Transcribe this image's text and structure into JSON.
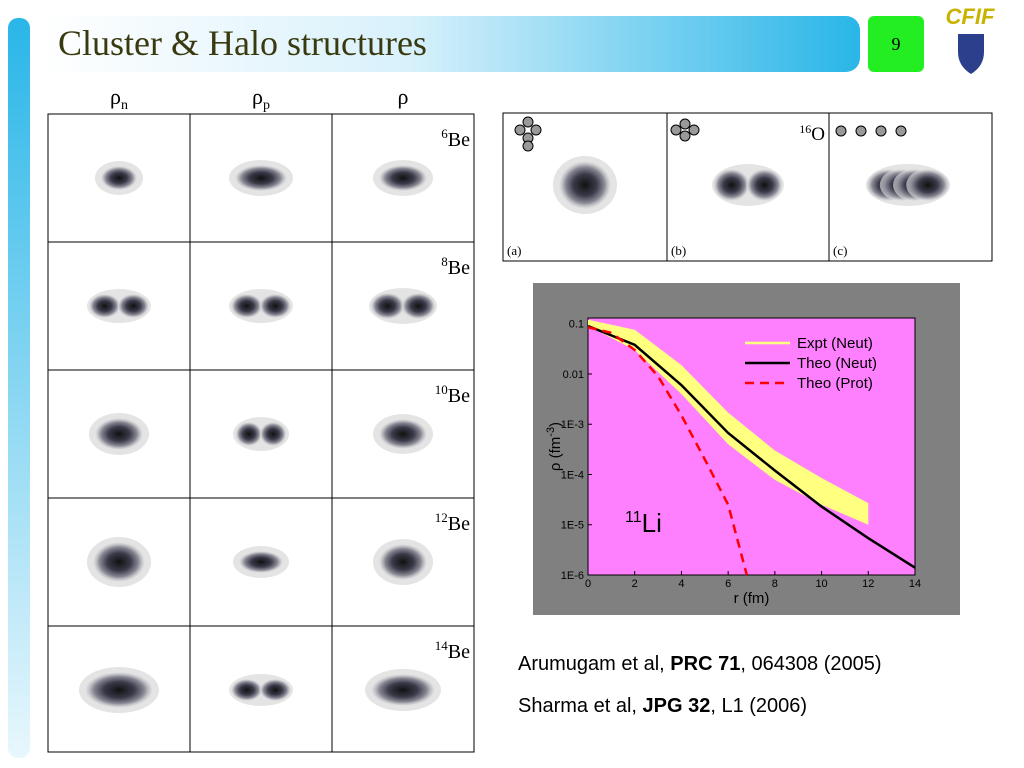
{
  "header": {
    "title": "Cluster & Halo structures",
    "page": "9",
    "logo": "CFIF"
  },
  "density_grid": {
    "columns": [
      {
        "symbol": "ρ",
        "sub": "n"
      },
      {
        "symbol": "ρ",
        "sub": "p"
      },
      {
        "symbol": "ρ"
      }
    ],
    "rows": [
      {
        "mass": "6",
        "element": "Be"
      },
      {
        "mass": "8",
        "element": "Be"
      },
      {
        "mass": "10",
        "element": "Be"
      },
      {
        "mass": "12",
        "element": "Be"
      },
      {
        "mass": "14",
        "element": "Be"
      }
    ]
  },
  "oxygen_panels": {
    "nucleus": {
      "mass": "16",
      "element": "O"
    },
    "labels": [
      "(a)",
      "(b)",
      "(c)"
    ]
  },
  "chart_data": {
    "type": "line",
    "log_y": true,
    "background": "#ff80ff",
    "frame": "#808080",
    "xlabel": "r (fm)",
    "ylabel": {
      "text": "ρ (fm",
      "sup": "-3",
      "end": ")"
    },
    "annotation": {
      "mass": "11",
      "element": "Li"
    },
    "xlim": [
      0,
      14
    ],
    "xticks": [
      0,
      2,
      4,
      6,
      8,
      10,
      12,
      14
    ],
    "ylim": [
      1e-06,
      0.13
    ],
    "yticks": [
      0.1,
      0.01,
      {
        "value": 0.001,
        "label": "1E-3"
      },
      {
        "value": 0.0001,
        "label": "1E-4"
      },
      {
        "value": 1e-05,
        "label": "1E-5"
      },
      {
        "value": 1e-06,
        "label": "1E-6"
      }
    ],
    "band": {
      "name": "Expt (Neut)",
      "color": "#ffff80",
      "x": [
        0,
        2,
        4,
        6,
        8,
        10,
        12
      ],
      "values": [
        0.12,
        0.076,
        0.015,
        0.0017,
        0.0003,
        8.5e-05,
        2.7e-05
      ],
      "lower": [
        0.09,
        0.03,
        0.004,
        0.0004,
        7.8e-05,
        2.5e-05,
        1e-05
      ]
    },
    "series": [
      {
        "name": "Theo (Neut)",
        "color": "#000000",
        "dash": false,
        "x": [
          0,
          2,
          4,
          6,
          8,
          10,
          12,
          14
        ],
        "values": [
          0.09,
          0.038,
          0.006,
          0.00067,
          0.00012,
          2.3e-05,
          5.4e-06,
          1.4e-06
        ]
      },
      {
        "name": "Theo (Prot)",
        "color": "#ff0000",
        "dash": true,
        "x": [
          0,
          1,
          2,
          3,
          4,
          5,
          6,
          6.8
        ],
        "values": [
          0.085,
          0.066,
          0.03,
          0.009,
          0.0015,
          0.0002,
          2.5e-05,
          1e-06
        ]
      }
    ]
  },
  "references": [
    {
      "authors": "Arumugam et al, ",
      "journal": "PRC 71",
      "rest": ", 064308 (2005)"
    },
    {
      "authors": "Sharma et al, ",
      "journal": "JPG 32",
      "rest": ", L1 (2006)"
    }
  ]
}
